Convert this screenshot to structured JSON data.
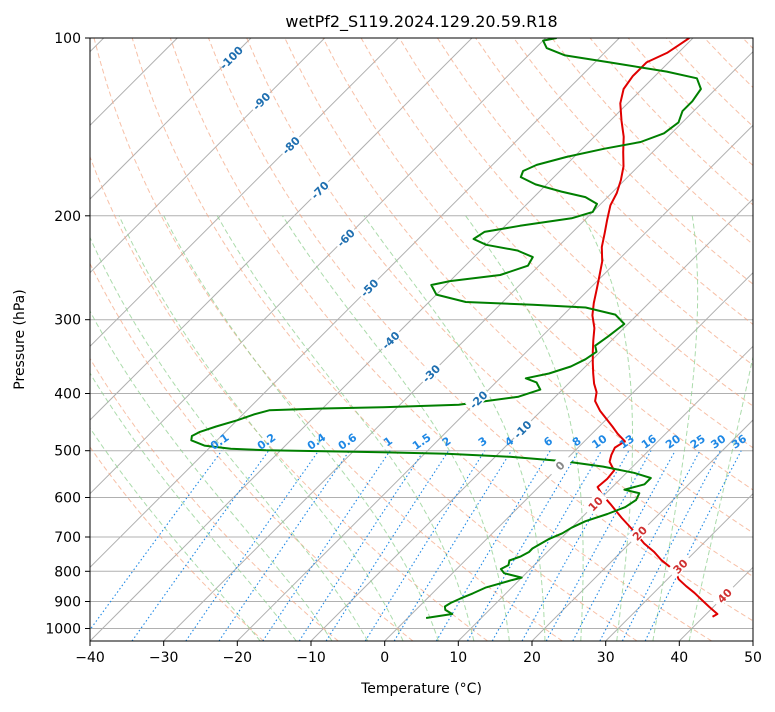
{
  "chart_data": {
    "type": "line",
    "subtype": "skew-t log-p diagram",
    "title": "wetPf2_S119.2024.129.20.59.R18",
    "xlabel": "Temperature (°C)",
    "ylabel": "Pressure (hPa)",
    "xlim": [
      -40,
      50
    ],
    "ylim": [
      1050,
      100
    ],
    "y_scale": "log",
    "grid": true,
    "x_ticks": [
      -40,
      -30,
      -20,
      -10,
      0,
      10,
      20,
      30,
      40,
      50
    ],
    "y_ticks": [
      100,
      200,
      300,
      400,
      500,
      600,
      700,
      800,
      900,
      1000
    ],
    "isotherm_labels": [
      "-100",
      "-90",
      "-80",
      "-70",
      "-60",
      "-50",
      "-40",
      "-30",
      "-20",
      "-10",
      "0",
      "10",
      "20",
      "30",
      "40"
    ],
    "mixing_ratio_labels": [
      "0.1",
      "0.2",
      "0.4",
      "0.6",
      "1",
      "1.5",
      "2",
      "3",
      "4",
      "6",
      "8",
      "10",
      "13",
      "16",
      "20",
      "25",
      "30",
      "36"
    ],
    "colors": {
      "temperature": "#e00000",
      "dewpoint": "#007f00",
      "isotherm_label_cold": "#1f6fb0",
      "isotherm_label_warm": "#d03030",
      "isotherm_label_zero": "#888888",
      "mixing_ratio": "#1e88e5",
      "dry_adiabat": "#f4a582",
      "moist_adiabat": "#8fcf8f",
      "grid": "#b0b0b0"
    },
    "series": [
      {
        "role": "temperature",
        "color": "#e00000",
        "points": [
          [
            41.2,
            955
          ],
          [
            41.5,
            945
          ],
          [
            39.5,
            920
          ],
          [
            37.5,
            895
          ],
          [
            35.5,
            870
          ],
          [
            33.5,
            848
          ],
          [
            31.5,
            825
          ],
          [
            30.5,
            808
          ],
          [
            29.0,
            790
          ],
          [
            26.5,
            765
          ],
          [
            24.5,
            742
          ],
          [
            22.0,
            718
          ],
          [
            19.0,
            685
          ],
          [
            15.5,
            650
          ],
          [
            12.0,
            615
          ],
          [
            9.5,
            592
          ],
          [
            8.0,
            576
          ],
          [
            8.2,
            558
          ],
          [
            8.0,
            540
          ],
          [
            6.2,
            522
          ],
          [
            5.5,
            508
          ],
          [
            5.0,
            494
          ],
          [
            5.5,
            482
          ],
          [
            3.5,
            468
          ],
          [
            1.8,
            455
          ],
          [
            0.0,
            442
          ],
          [
            -2.0,
            428
          ],
          [
            -4.0,
            412
          ],
          [
            -5.0,
            398
          ],
          [
            -6.5,
            385
          ],
          [
            -8.0,
            370
          ],
          [
            -9.5,
            355
          ],
          [
            -11.0,
            340
          ],
          [
            -12.5,
            325
          ],
          [
            -14.0,
            310
          ],
          [
            -16.0,
            295
          ],
          [
            -17.5,
            281
          ],
          [
            -19.0,
            266
          ],
          [
            -20.5,
            252
          ],
          [
            -22.0,
            239
          ],
          [
            -24.0,
            226
          ],
          [
            -25.5,
            214
          ],
          [
            -27.0,
            203
          ],
          [
            -28.5,
            192
          ],
          [
            -29.3,
            183
          ],
          [
            -30.5,
            174
          ],
          [
            -32.0,
            165
          ],
          [
            -34.0,
            156
          ],
          [
            -36.0,
            147
          ],
          [
            -38.5,
            138
          ],
          [
            -41.0,
            129
          ],
          [
            -42.5,
            122
          ],
          [
            -43.0,
            116
          ],
          [
            -43.0,
            110
          ],
          [
            -41.5,
            106
          ],
          [
            -41.0,
            103
          ],
          [
            -40.5,
            100
          ]
        ]
      },
      {
        "role": "dewpoint",
        "color": "#007f00",
        "points": [
          [
            2.5,
            960
          ],
          [
            5.5,
            945
          ],
          [
            4.0,
            930
          ],
          [
            3.5,
            918
          ],
          [
            3.8,
            905
          ],
          [
            4.5,
            890
          ],
          [
            5.5,
            872
          ],
          [
            6.5,
            852
          ],
          [
            9.0,
            828
          ],
          [
            10.0,
            820
          ],
          [
            7.0,
            806
          ],
          [
            6.0,
            793
          ],
          [
            6.5,
            781
          ],
          [
            6.0,
            767
          ],
          [
            7.0,
            755
          ],
          [
            7.5,
            742
          ],
          [
            7.5,
            732
          ],
          [
            8.0,
            718
          ],
          [
            8.5,
            705
          ],
          [
            9.5,
            690
          ],
          [
            10.0,
            675
          ],
          [
            11.0,
            658
          ],
          [
            13.0,
            640
          ],
          [
            14.5,
            623
          ],
          [
            15.0,
            606
          ],
          [
            14.5,
            590
          ],
          [
            12.0,
            582
          ],
          [
            14.0,
            570
          ],
          [
            14.0,
            556
          ],
          [
            11.0,
            545
          ],
          [
            6.0,
            532
          ],
          [
            0.0,
            521
          ],
          [
            -8.0,
            512
          ],
          [
            -17.0,
            506
          ],
          [
            -26.0,
            503
          ],
          [
            -34.0,
            501
          ],
          [
            -42.0,
            499
          ],
          [
            -47.0,
            496
          ],
          [
            -51.0,
            490
          ],
          [
            -53.5,
            480
          ],
          [
            -54.0,
            472
          ],
          [
            -53.5,
            465
          ],
          [
            -52.0,
            455
          ],
          [
            -50.0,
            444
          ],
          [
            -48.5,
            434
          ],
          [
            -47.0,
            427
          ],
          [
            -40.0,
            424
          ],
          [
            -32.0,
            422
          ],
          [
            -22.0,
            418
          ],
          [
            -15.0,
            405
          ],
          [
            -13.0,
            394
          ],
          [
            -14.5,
            383
          ],
          [
            -16.5,
            377
          ],
          [
            -14.0,
            370
          ],
          [
            -12.0,
            360
          ],
          [
            -11.0,
            350
          ],
          [
            -10.5,
            340
          ],
          [
            -11.5,
            332
          ],
          [
            -11.0,
            320
          ],
          [
            -10.5,
            305
          ],
          [
            -13.0,
            294
          ],
          [
            -18.0,
            286
          ],
          [
            -25.5,
            283
          ],
          [
            -35.0,
            280
          ],
          [
            -40.0,
            272
          ],
          [
            -42.0,
            262
          ],
          [
            -40.0,
            258
          ],
          [
            -34.0,
            252
          ],
          [
            -31.5,
            243
          ],
          [
            -32.0,
            235
          ],
          [
            -35.0,
            229
          ],
          [
            -40.0,
            224
          ],
          [
            -42.5,
            219
          ],
          [
            -42.0,
            213
          ],
          [
            -38.0,
            208
          ],
          [
            -32.0,
            202
          ],
          [
            -30.0,
            197
          ],
          [
            -30.5,
            191
          ],
          [
            -33.0,
            186
          ],
          [
            -37.0,
            182
          ],
          [
            -41.5,
            177
          ],
          [
            -44.5,
            172
          ],
          [
            -45.0,
            168
          ],
          [
            -44.0,
            164
          ],
          [
            -41.0,
            159
          ],
          [
            -37.0,
            154
          ],
          [
            -33.0,
            150
          ],
          [
            -31.0,
            145
          ],
          [
            -30.5,
            139
          ],
          [
            -31.5,
            133
          ],
          [
            -31.5,
            128
          ],
          [
            -32.0,
            122
          ],
          [
            -34.0,
            117
          ],
          [
            -39.0,
            114
          ],
          [
            -48.0,
            110
          ],
          [
            -55.0,
            107
          ],
          [
            -58.5,
            104
          ],
          [
            -60.0,
            101
          ],
          [
            -58.5,
            100
          ]
        ]
      }
    ]
  }
}
